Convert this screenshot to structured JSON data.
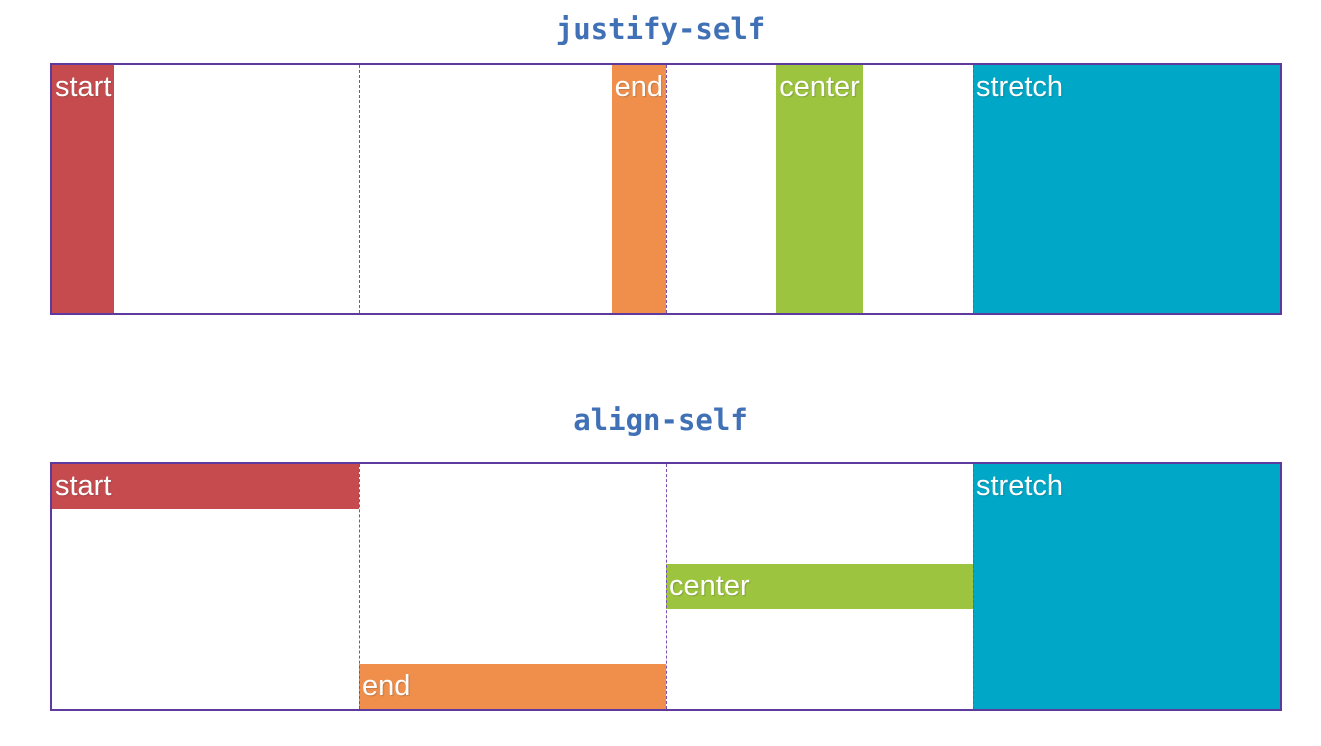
{
  "figure": {
    "topic": "CSS grid item self-alignment demo"
  },
  "colors": {
    "background": "#ffffff",
    "container_border": "#5f3a9e",
    "grid_line": "#7a4fb0",
    "title_text": "#4070b5",
    "item_text": "#ffffff",
    "start_red": "#c54b4e",
    "end_orange": "#ef8f4b",
    "center_green": "#9cc43e",
    "stretch_teal": "#00a7c6"
  },
  "sections": [
    {
      "title": "justify-self",
      "property": "justify-self",
      "columns": 4,
      "items": [
        {
          "label": "start",
          "value": "start",
          "color": "#c54b4e"
        },
        {
          "label": "end",
          "value": "end",
          "color": "#ef8f4b"
        },
        {
          "label": "center",
          "value": "center",
          "color": "#9cc43e"
        },
        {
          "label": "stretch",
          "value": "stretch",
          "color": "#00a7c6"
        }
      ]
    },
    {
      "title": "align-self",
      "property": "align-self",
      "columns": 4,
      "items": [
        {
          "label": "start",
          "value": "start",
          "color": "#c54b4e"
        },
        {
          "label": "end",
          "value": "end",
          "color": "#ef8f4b"
        },
        {
          "label": "center",
          "value": "center",
          "color": "#9cc43e"
        },
        {
          "label": "stretch",
          "value": "stretch",
          "color": "#00a7c6"
        }
      ]
    }
  ]
}
